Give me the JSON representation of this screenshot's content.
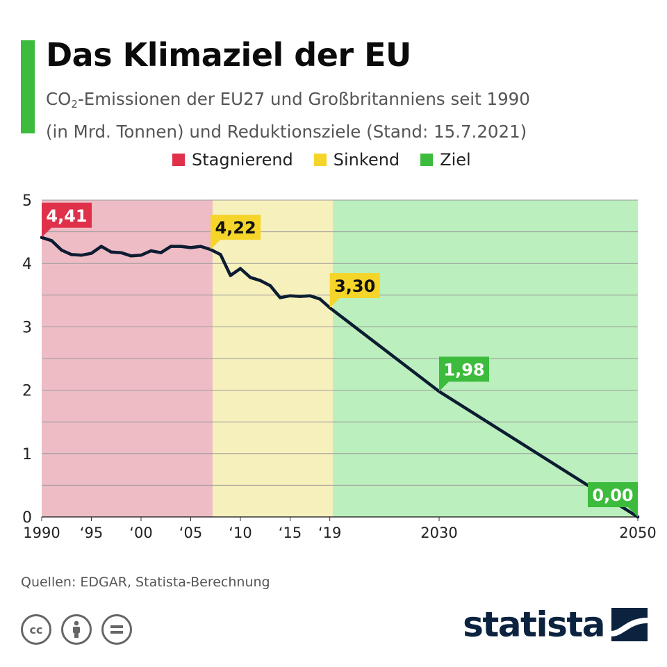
{
  "header": {
    "title": "Das Klimaziel der EU",
    "subtitle_co": "CO",
    "subtitle_sub": "2",
    "subtitle_rest": "-Emissionen der EU27 und Großbritanniens seit 1990",
    "subtitle_line2": "(in Mrd. Tonnen) und Reduktionsziele (Stand: 15.7.2021)"
  },
  "legend": [
    {
      "label": "Stagnierend",
      "color": "#e0304a"
    },
    {
      "label": "Sinkend",
      "color": "#f5d52a"
    },
    {
      "label": "Ziel",
      "color": "#3cbb3c"
    }
  ],
  "footer": {
    "source": "Quellen: EDGAR, Statista-Berechnung",
    "cc_icons": [
      "cc-icon",
      "attribution-icon",
      "no-derivatives-icon"
    ],
    "brand": "statista"
  },
  "chart_data": {
    "type": "line",
    "xlim": [
      1990,
      2050
    ],
    "ylim": [
      0,
      5
    ],
    "yticks": [
      0,
      1,
      2,
      3,
      4,
      5
    ],
    "grid": true,
    "xticks": [
      {
        "value": 1990,
        "label": "1990"
      },
      {
        "value": 1995,
        "label": "‘95"
      },
      {
        "value": 2000,
        "label": "‘00"
      },
      {
        "value": 2005,
        "label": "‘05"
      },
      {
        "value": 2010,
        "label": "‘10"
      },
      {
        "value": 2015,
        "label": "‘15"
      },
      {
        "value": 2019,
        "label": "‘19"
      },
      {
        "value": 2030,
        "label": "2030"
      },
      {
        "value": 2050,
        "label": "2050"
      }
    ],
    "regions": [
      {
        "from": 1990,
        "to": 2007.2,
        "color": "#eebcc5"
      },
      {
        "from": 2007.2,
        "to": 2019.3,
        "color": "#f6f0bc"
      },
      {
        "from": 2019.3,
        "to": 2050.5,
        "color": "#bbefbd"
      }
    ],
    "series": [
      {
        "color": "#0c1c32",
        "x": [
          1990,
          1991,
          1992,
          1993,
          1994,
          1995,
          1996,
          1997,
          1998,
          1999,
          2000,
          2001,
          2002,
          2003,
          2004,
          2005,
          2006,
          2007,
          2008,
          2009,
          2010,
          2011,
          2012,
          2013,
          2014,
          2015,
          2016,
          2017,
          2018,
          2019,
          2030,
          2050
        ],
        "y": [
          4.41,
          4.36,
          4.21,
          4.14,
          4.13,
          4.16,
          4.27,
          4.18,
          4.17,
          4.12,
          4.13,
          4.2,
          4.17,
          4.27,
          4.27,
          4.25,
          4.27,
          4.22,
          4.14,
          3.81,
          3.92,
          3.78,
          3.73,
          3.65,
          3.46,
          3.49,
          3.48,
          3.49,
          3.44,
          3.3,
          1.98,
          0.0
        ]
      }
    ],
    "callouts": [
      {
        "x": 1990,
        "y": 4.41,
        "label": "4,41",
        "color": "#e0304a",
        "text_color": "#ffffff",
        "tail": "left"
      },
      {
        "x": 2007,
        "y": 4.22,
        "label": "4,22",
        "color": "#f5d52a",
        "text_color": "#111111",
        "tail": "left"
      },
      {
        "x": 2019,
        "y": 3.3,
        "label": "3,30",
        "color": "#f5d52a",
        "text_color": "#111111",
        "tail": "left"
      },
      {
        "x": 2030,
        "y": 1.98,
        "label": "1,98",
        "color": "#3cbb3c",
        "text_color": "#ffffff",
        "tail": "left"
      },
      {
        "x": 2050,
        "y": 0.0,
        "label": "0,00",
        "color": "#3cbb3c",
        "text_color": "#ffffff",
        "tail": "right"
      }
    ]
  }
}
